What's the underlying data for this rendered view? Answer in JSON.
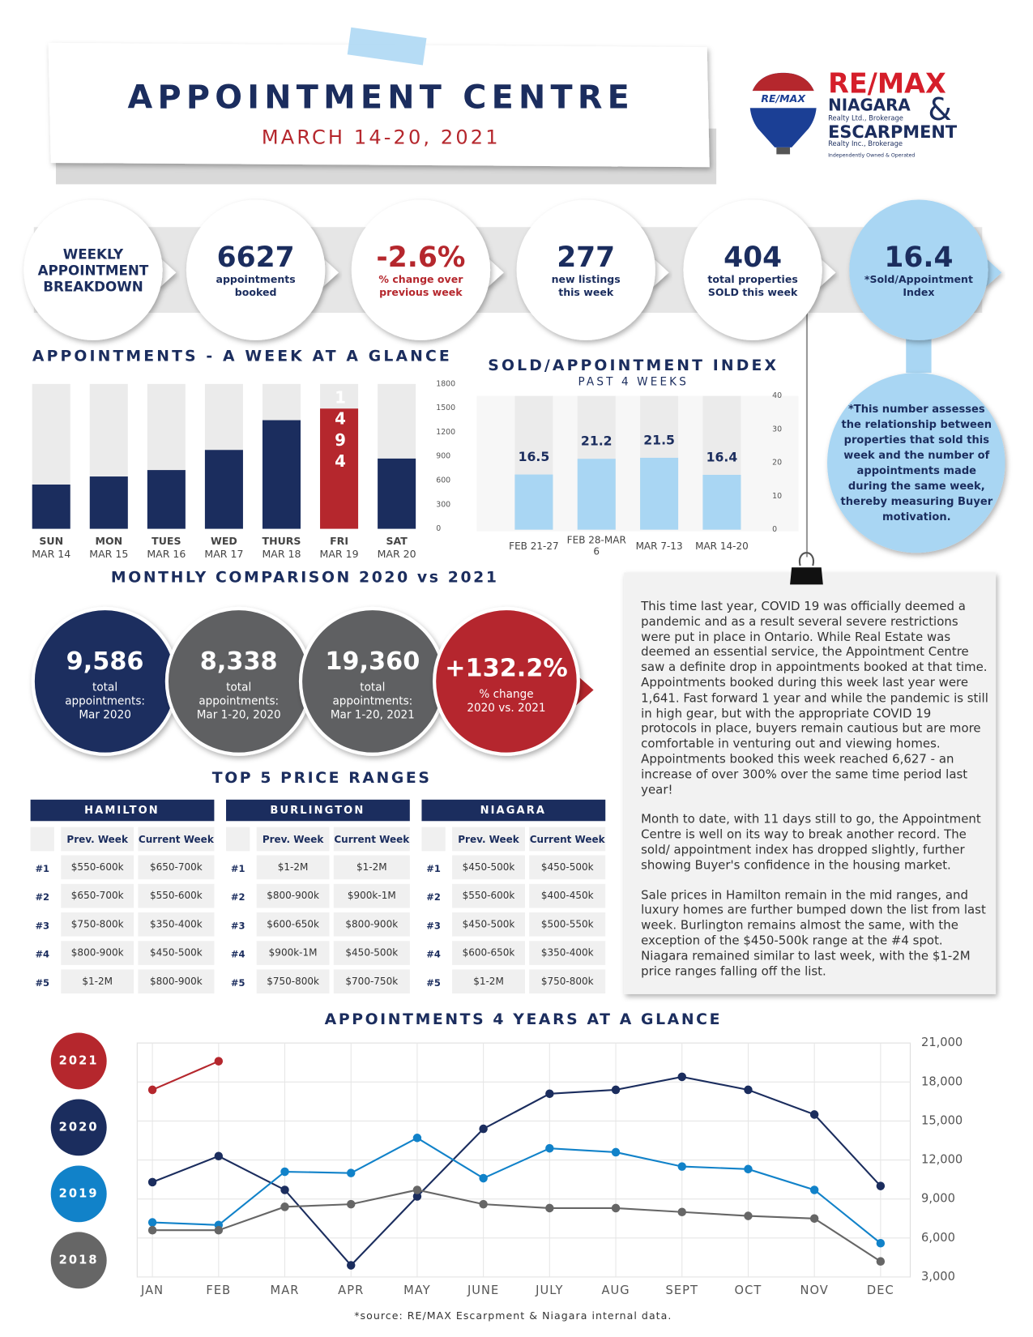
{
  "header": {
    "title": "APPOINTMENT CENTRE",
    "subtitle": "MARCH 14-20, 2021"
  },
  "logo": {
    "balloon": "RE/MAX",
    "brand": "RE/MAX",
    "office1": "NIAGARA",
    "office1_sub": "Realty Ltd., Brokerage",
    "amp": "&",
    "office2": "ESCARPMENT",
    "office2_sub": "Realty Inc., Brokerage",
    "note": "Independently Owned & Operated"
  },
  "stats": {
    "lead": "WEEKLY APPOINTMENT BREAKDOWN",
    "items": [
      {
        "value": "6627",
        "label": "appointments booked",
        "color": "#1b2d5e"
      },
      {
        "value": "-2.6%",
        "label": "% change over previous week",
        "color": "#b5272d"
      },
      {
        "value": "277",
        "label": "new listings this week",
        "color": "#1b2d5e"
      },
      {
        "value": "404",
        "label": "total properties SOLD this week",
        "color": "#1b2d5e"
      },
      {
        "value": "16.4",
        "label": "*Sold/Appointment Index",
        "color": "#1b2d5e"
      }
    ],
    "note": "*This number assesses the relationship between properties that sold this week and the number of appointments made during the same week, thereby measuring Buyer motivation."
  },
  "chart_data": [
    {
      "type": "bar",
      "title": "APPOINTMENTS - A WEEK AT A GLANCE",
      "categories": [
        "SUN",
        "MON",
        "TUES",
        "WED",
        "THURS",
        "FRI",
        "SAT"
      ],
      "dates": [
        "MAR 14",
        "MAR 15",
        "MAR 16",
        "MAR 17",
        "MAR 18",
        "MAR 19",
        "MAR 20"
      ],
      "values": [
        550,
        650,
        730,
        980,
        1350,
        1494,
        873
      ],
      "value_labels": [
        null,
        null,
        null,
        null,
        null,
        "1494",
        null
      ],
      "colors": [
        "#1b2d5e",
        "#1b2d5e",
        "#1b2d5e",
        "#1b2d5e",
        "#1b2d5e",
        "#b5272d",
        "#1b2d5e"
      ],
      "background": "#ebebeb",
      "ylim": [
        0,
        1800
      ],
      "yticks": [
        0,
        300,
        600,
        900,
        1200,
        1500,
        1800
      ]
    },
    {
      "type": "bar",
      "title": "SOLD/APPOINTMENT INDEX",
      "subtitle": "PAST 4 WEEKS",
      "categories": [
        "FEB 21-27",
        "FEB 28-MAR 6",
        "MAR 7-13",
        "MAR 14-20"
      ],
      "values": [
        16.5,
        21.2,
        21.5,
        16.4
      ],
      "color": "#a9d6f3",
      "background": "#ebebeb",
      "ylim": [
        0,
        40
      ],
      "yticks": [
        0,
        10,
        20,
        30,
        40
      ]
    },
    {
      "type": "line",
      "title": "APPOINTMENTS 4 YEARS AT A GLANCE",
      "categories": [
        "JAN",
        "FEB",
        "MAR",
        "APR",
        "MAY",
        "JUNE",
        "JULY",
        "AUG",
        "SEPT",
        "OCT",
        "NOV",
        "DEC"
      ],
      "series": [
        {
          "name": "2021",
          "color": "#b5272d",
          "values": [
            17400,
            19600,
            null,
            null,
            null,
            null,
            null,
            null,
            null,
            null,
            null,
            null
          ]
        },
        {
          "name": "2020",
          "color": "#1b2d5e",
          "values": [
            10300,
            12300,
            9700,
            3900,
            9200,
            14400,
            17100,
            17400,
            18400,
            17400,
            15500,
            10000
          ]
        },
        {
          "name": "2019",
          "color": "#1182c9",
          "values": [
            7200,
            7000,
            11100,
            11000,
            13700,
            10600,
            12900,
            12600,
            11500,
            11300,
            9700,
            5600
          ]
        },
        {
          "name": "2018",
          "color": "#666666",
          "values": [
            6600,
            6600,
            8400,
            8600,
            9700,
            8600,
            8300,
            8300,
            8000,
            7700,
            7500,
            4200
          ]
        }
      ],
      "ylim": [
        3000,
        21000
      ],
      "yticks": [
        {
          "value": 3000,
          "label": "3,000"
        },
        {
          "value": 6000,
          "label": "6,000"
        },
        {
          "value": 9000,
          "label": "9,000"
        },
        {
          "value": 12000,
          "label": "12,000"
        },
        {
          "value": 15000,
          "label": "15,000"
        },
        {
          "value": 18000,
          "label": "18,000"
        },
        {
          "value": 21000,
          "label": "21,000"
        }
      ],
      "grid": true,
      "source": "*source:  RE/MAX Escarpment & Niagara internal data."
    }
  ],
  "monthly": {
    "title": "MONTHLY COMPARISON 2020 vs 2021",
    "items": [
      {
        "value": "9,586",
        "label": "total appointments:",
        "period": "Mar 2020",
        "color": "#1b2d5e"
      },
      {
        "value": "8,338",
        "label": "total appointments:",
        "period": "Mar 1-20, 2020",
        "color": "#5f6062"
      },
      {
        "value": "19,360",
        "label": "total appointments:",
        "period": "Mar 1-20, 2021",
        "color": "#5f6062"
      },
      {
        "value": "+132.2%",
        "label": "% change",
        "period": "2020 vs. 2021",
        "color": "#b5272d"
      }
    ]
  },
  "prices": {
    "title": "TOP 5 PRICE RANGES",
    "columns": [
      "Prev. Week",
      "Current Week"
    ],
    "ranks": [
      "#1",
      "#2",
      "#3",
      "#4",
      "#5"
    ],
    "cities": [
      {
        "name": "HAMILTON",
        "rows": [
          [
            "$550-600k",
            "$650-700k"
          ],
          [
            "$650-700k",
            "$550-600k"
          ],
          [
            "$750-800k",
            "$350-400k"
          ],
          [
            "$800-900k",
            "$450-500k"
          ],
          [
            "$1-2M",
            "$800-900k"
          ]
        ]
      },
      {
        "name": "BURLINGTON",
        "rows": [
          [
            "$1-2M",
            "$1-2M"
          ],
          [
            "$800-900k",
            "$900k-1M"
          ],
          [
            "$600-650k",
            "$800-900k"
          ],
          [
            "$900k-1M",
            "$450-500k"
          ],
          [
            "$750-800k",
            "$700-750k"
          ]
        ]
      },
      {
        "name": "NIAGARA",
        "rows": [
          [
            "$450-500k",
            "$450-500k"
          ],
          [
            "$550-600k",
            "$400-450k"
          ],
          [
            "$450-500k",
            "$500-550k"
          ],
          [
            "$600-650k",
            "$350-400k"
          ],
          [
            "$1-2M",
            "$750-800k"
          ]
        ]
      }
    ]
  },
  "commentary": [
    "This time last year, COVID 19 was officially deemed a pandemic and as a result several severe restrictions were put in place in Ontario. While Real Estate was deemed an essential service, the Appointment Centre saw a definite drop in appointments booked at that time. Appointments booked during this week last year were 1,641. Fast forward 1 year and while the pandemic is still in high gear, but with the appropriate COVID 19 protocols in place, buyers remain cautious but are more comfortable in venturing out and viewing homes. Appointments booked this week reached 6,627 - an increase of over 300% over the same time period last year!",
    "Month to date, with 11 days still to go, the Appointment Centre is well on its way to break another record. The sold/ appointment index has dropped slightly, further showing Buyer's confidence in the housing market.",
    "Sale prices in Hamilton remain in the mid ranges, and luxury homes are further bumped down the list from last week. Burlington remains almost the same, with the exception of the $450-500k range at the #4 spot. Niagara remained similar to last week, with the $1-2M price ranges falling off the list."
  ]
}
